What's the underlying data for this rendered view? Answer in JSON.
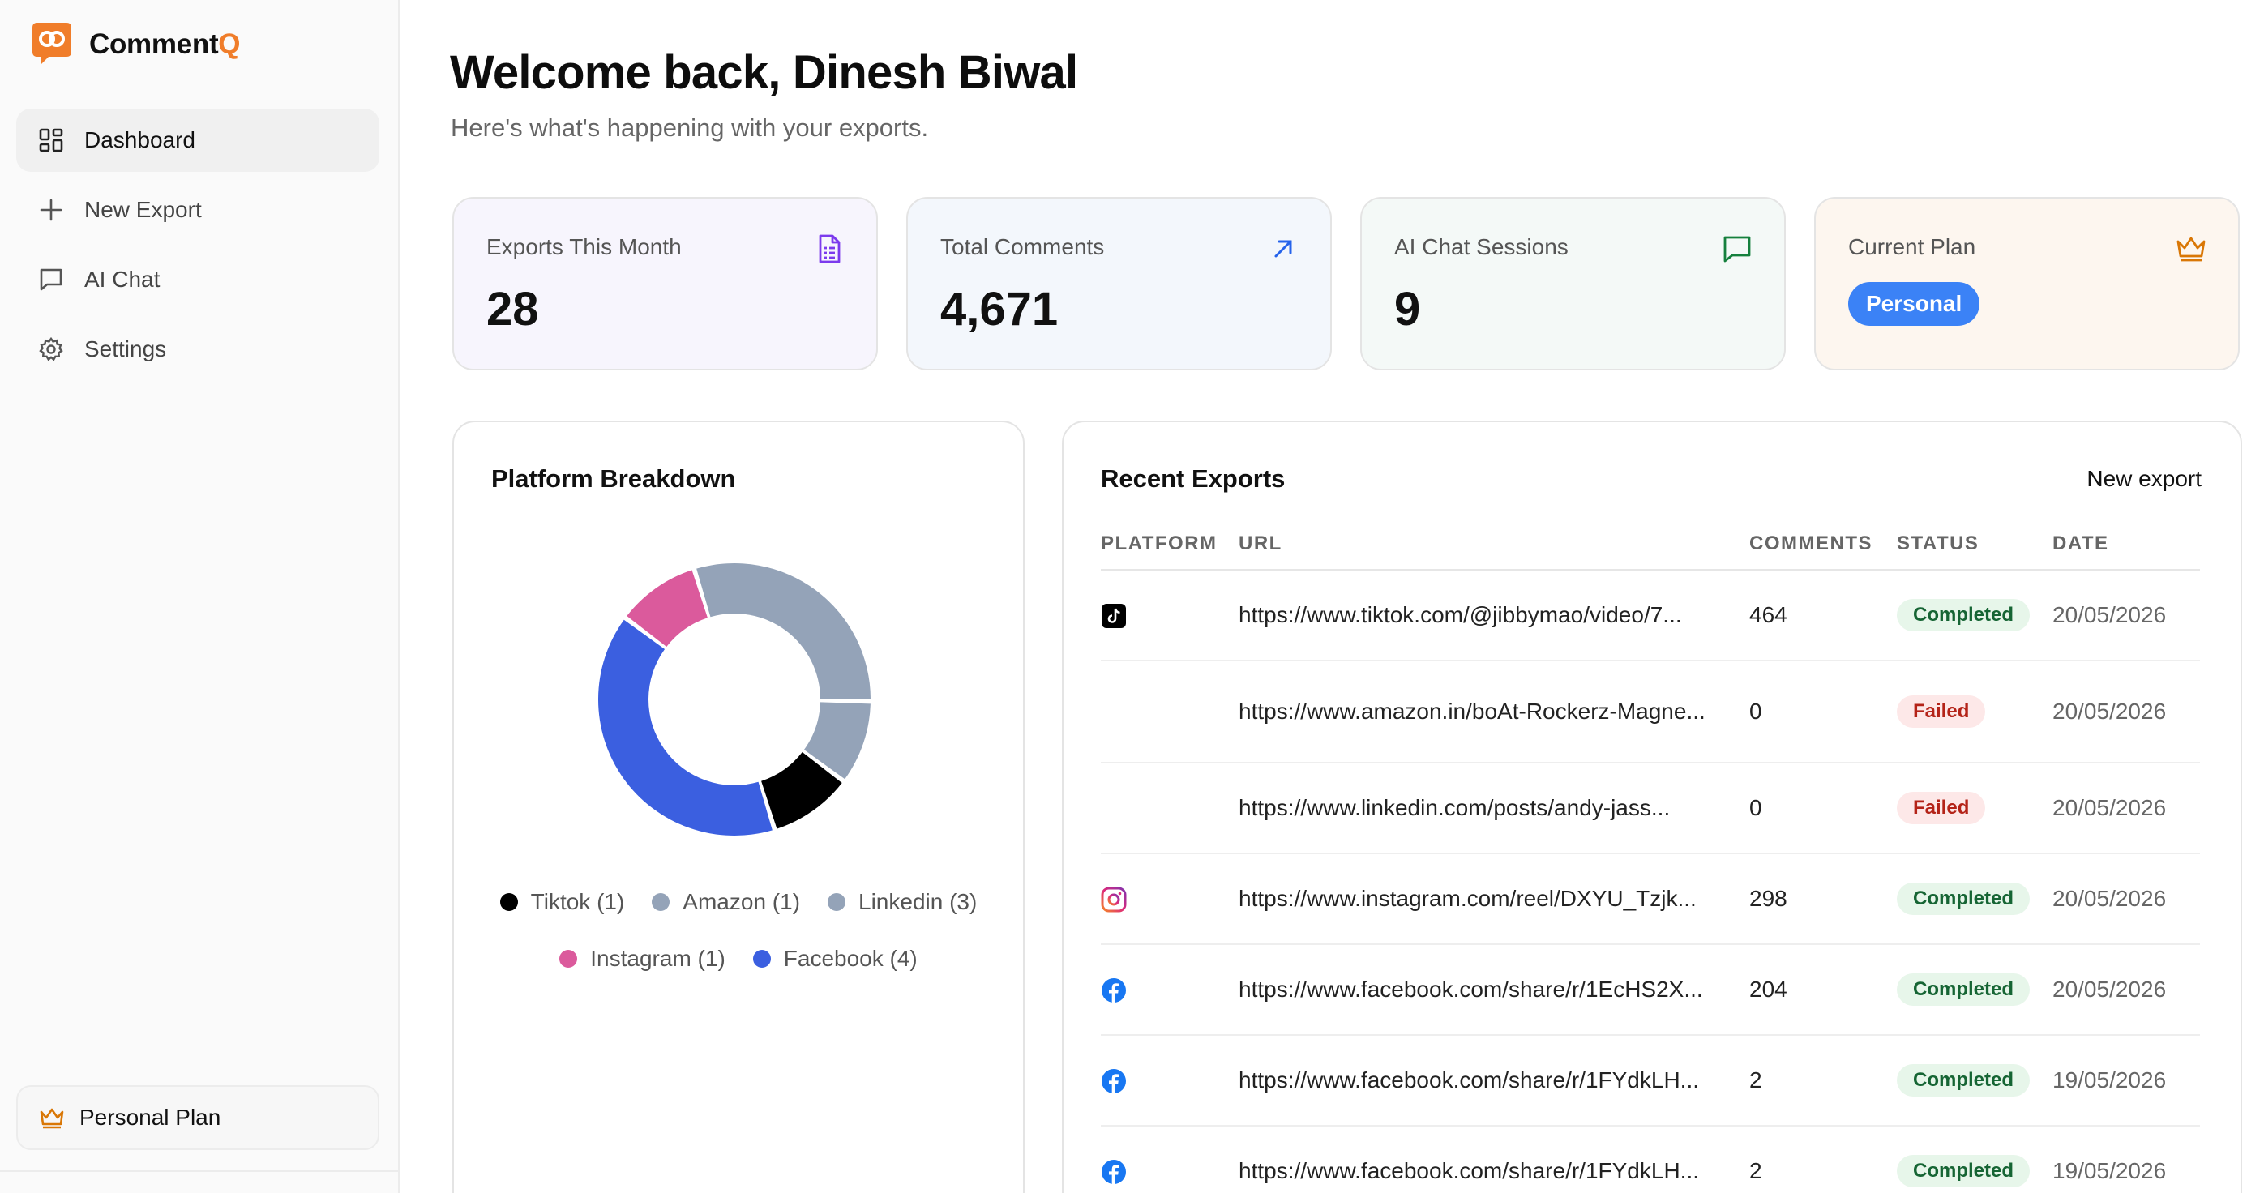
{
  "brand": {
    "name_main": "Comment",
    "name_accent": "Q",
    "accent_color": "#f07d2a"
  },
  "sidebar": {
    "items": [
      {
        "label": "Dashboard",
        "icon": "dashboard-grid-icon",
        "active": true
      },
      {
        "label": "New Export",
        "icon": "plus-icon",
        "active": false
      },
      {
        "label": "AI Chat",
        "icon": "chat-bubble-icon",
        "active": false
      },
      {
        "label": "Settings",
        "icon": "gear-icon",
        "active": false
      }
    ],
    "plan_label": "Personal Plan",
    "plan_icon": "crown-icon"
  },
  "header": {
    "title": "Welcome back, Dinesh Biwal",
    "subtitle": "Here's what's happening with your exports."
  },
  "stats": {
    "exports_month": {
      "label": "Exports This Month",
      "value": "28",
      "icon": "document-icon",
      "color": "#7c3aed",
      "bg": "#f7f5fd"
    },
    "total_comments": {
      "label": "Total Comments",
      "value": "4,671",
      "icon": "arrow-up-right-icon",
      "color": "#2563eb",
      "bg": "#f3f7fc"
    },
    "ai_sessions": {
      "label": "AI Chat Sessions",
      "value": "9",
      "icon": "chat-bubble-icon",
      "color": "#15803d",
      "bg": "#f4f9f7"
    },
    "current_plan": {
      "label": "Current Plan",
      "value": "Personal",
      "icon": "crown-icon",
      "color": "#d97706",
      "bg": "#fdf6ef",
      "pill_color": "#3b82f6"
    }
  },
  "platform_breakdown": {
    "title": "Platform Breakdown",
    "chart_data": {
      "type": "pie",
      "categories": [
        "Tiktok",
        "Amazon",
        "Linkedin",
        "Instagram",
        "Facebook"
      ],
      "values": [
        1,
        1,
        3,
        1,
        4
      ],
      "colors": [
        "#000000",
        "#94a3b8",
        "#94a3b8",
        "#db5a9c",
        "#3b5fe0"
      ],
      "legend_labels": [
        "Tiktok (1)",
        "Amazon (1)",
        "Linkedin (3)",
        "Instagram (1)",
        "Facebook (4)"
      ],
      "legend_placement": "bottom"
    }
  },
  "recent_exports": {
    "title": "Recent Exports",
    "new_export_label": "New export",
    "columns": [
      "PLATFORM",
      "URL",
      "COMMENTS",
      "STATUS",
      "DATE"
    ],
    "rows": [
      {
        "platform": "tiktok",
        "url": "https://www.tiktok.com/@jibbymao/video/7...",
        "comments": "464",
        "status": "Completed",
        "status_type": "completed",
        "date": "20/05/2026"
      },
      {
        "platform": "",
        "url": "https://www.amazon.in/boAt-Rockerz-Magne...",
        "comments": "0",
        "status": "Failed",
        "status_type": "failed",
        "date": "20/05/2026"
      },
      {
        "platform": "",
        "url": "https://www.linkedin.com/posts/andy-jass...",
        "comments": "0",
        "status": "Failed",
        "status_type": "failed",
        "date": "20/05/2026"
      },
      {
        "platform": "instagram",
        "url": "https://www.instagram.com/reel/DXYU_Tzjk...",
        "comments": "298",
        "status": "Completed",
        "status_type": "completed",
        "date": "20/05/2026"
      },
      {
        "platform": "facebook",
        "url": "https://www.facebook.com/share/r/1EcHS2X...",
        "comments": "204",
        "status": "Completed",
        "status_type": "completed",
        "date": "20/05/2026"
      },
      {
        "platform": "facebook",
        "url": "https://www.facebook.com/share/r/1FYdkLH...",
        "comments": "2",
        "status": "Completed",
        "status_type": "completed",
        "date": "19/05/2026"
      },
      {
        "platform": "facebook",
        "url": "https://www.facebook.com/share/r/1FYdkLH...",
        "comments": "2",
        "status": "Completed",
        "status_type": "completed",
        "date": "19/05/2026"
      }
    ]
  }
}
